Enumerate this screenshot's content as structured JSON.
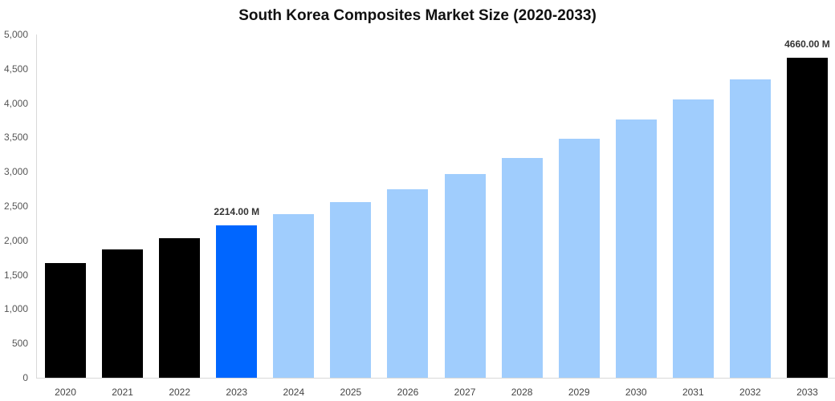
{
  "chart_data": {
    "type": "bar",
    "title": "South Korea Composites Market Size (2020-2033)",
    "xlabel": "",
    "ylabel": "",
    "ylim": [
      0,
      5000
    ],
    "yticks": [
      0,
      500,
      1000,
      1500,
      2000,
      2500,
      3000,
      3500,
      4000,
      4500,
      5000
    ],
    "ytick_labels": [
      "0",
      "500",
      "1,000",
      "1,500",
      "2,000",
      "2,500",
      "3,000",
      "3,500",
      "4,000",
      "4,500",
      "5,000"
    ],
    "grid": false,
    "legend": null,
    "categories": [
      "2020",
      "2021",
      "2022",
      "2023",
      "2024",
      "2025",
      "2026",
      "2027",
      "2028",
      "2029",
      "2030",
      "2031",
      "2032",
      "2033"
    ],
    "values": [
      1670,
      1869,
      2033,
      2214,
      2383,
      2558,
      2745,
      2967,
      3201,
      3481,
      3762,
      4054,
      4346,
      4660
    ],
    "colors": [
      "#000000",
      "#000000",
      "#000000",
      "#0066ff",
      "#a0cdfd",
      "#a0cdfd",
      "#a0cdfd",
      "#a0cdfd",
      "#a0cdfd",
      "#a0cdfd",
      "#a0cdfd",
      "#a0cdfd",
      "#a0cdfd",
      "#000000"
    ],
    "annotations": [
      {
        "category": "2023",
        "text": "2214.00 M"
      },
      {
        "category": "2033",
        "text": "4660.00 M"
      }
    ]
  }
}
